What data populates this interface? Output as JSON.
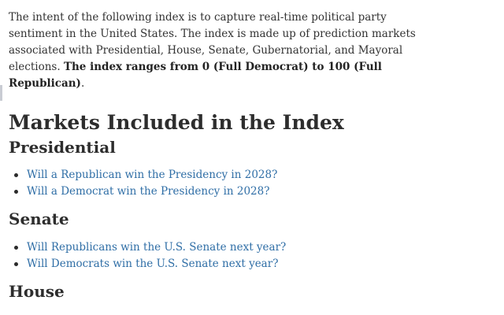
{
  "intro": {
    "text": "The intent of the following index is to capture real-time political party sentiment in the United States. The index is made up of prediction markets associated with Presidential, House, Senate, Gubernatorial, and Mayoral elections. ",
    "bold": "The index ranges from 0 (Full Democrat) to 100 (Full Republican)",
    "end": "."
  },
  "section_title": "Markets Included in the Index",
  "presidential": {
    "heading": "Presidential",
    "links": [
      "Will a Republican win the Presidency in 2028?",
      "Will a Democrat win the Presidency in 2028?"
    ]
  },
  "senate": {
    "heading": "Senate",
    "links": [
      "Will Republicans win the U.S. Senate next year?",
      "Will Democrats win the U.S. Senate next year?"
    ]
  },
  "house": {
    "heading": "House"
  }
}
